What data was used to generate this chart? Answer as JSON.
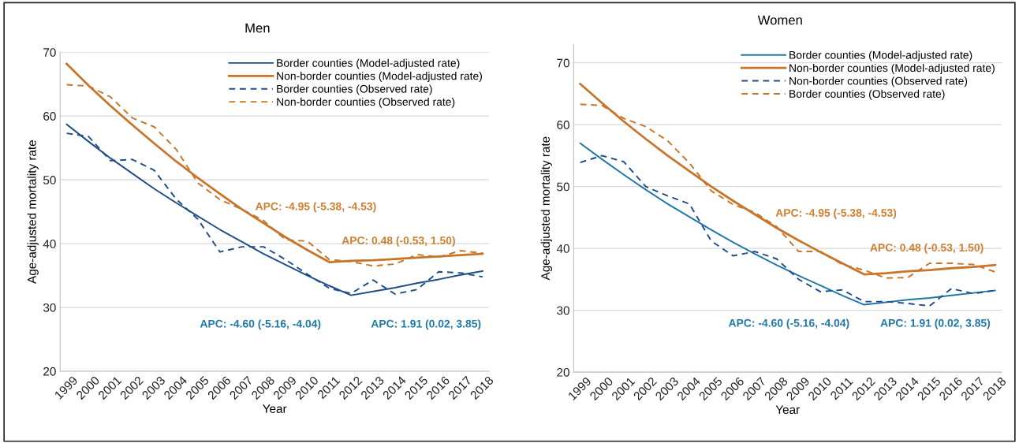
{
  "chart_data": [
    {
      "type": "line",
      "title": "Men",
      "xlabel": "Year",
      "ylabel": "Age-adjusted mortality rate",
      "categories": [
        "1999",
        "2000",
        "2001",
        "2002",
        "2003",
        "2004",
        "2005",
        "2006",
        "2007",
        "2008",
        "2009",
        "2010",
        "2011",
        "2012",
        "2013",
        "2014",
        "2015",
        "2016",
        "2017",
        "2018"
      ],
      "series": [
        {
          "name": "Border counties (Model-adjusted rate)",
          "color": "#1f4e89",
          "line_style": "solid",
          "values": [
            58.7,
            56.0,
            53.4,
            51.0,
            48.6,
            46.4,
            44.3,
            42.2,
            40.3,
            38.4,
            36.7,
            35.0,
            33.4,
            31.9,
            32.5,
            33.1,
            33.8,
            34.4,
            35.1,
            35.7
          ]
        },
        {
          "name": "Non-border counties (Model-adjusted rate)",
          "color": "#c8752a",
          "line_style": "solid",
          "values": [
            68.2,
            64.8,
            61.6,
            58.6,
            55.7,
            52.9,
            50.3,
            47.8,
            45.4,
            43.2,
            41.0,
            39.0,
            37.1,
            37.3,
            37.4,
            37.6,
            37.8,
            38.0,
            38.2,
            38.4
          ]
        },
        {
          "name": "Border counties (Observed rate)",
          "color": "#1f4e89",
          "line_style": "dashed",
          "values": [
            57.3,
            56.8,
            53.0,
            53.2,
            51.5,
            47.0,
            43.8,
            38.7,
            39.5,
            39.5,
            37.5,
            35.2,
            33.0,
            32.2,
            34.3,
            32.1,
            32.8,
            35.6,
            35.4,
            34.8
          ]
        },
        {
          "name": "Non-border counties (Observed rate)",
          "color": "#c8752a",
          "line_style": "dashed",
          "values": [
            64.9,
            64.7,
            63.0,
            59.7,
            58.3,
            54.8,
            49.5,
            46.9,
            45.4,
            43.6,
            40.6,
            40.4,
            37.5,
            37.2,
            36.5,
            36.8,
            38.3,
            37.9,
            38.9,
            38.5
          ]
        }
      ],
      "ylim": [
        20,
        70
      ],
      "yticks": [
        20,
        30,
        40,
        50,
        60,
        70
      ],
      "grid": "y",
      "legend": "top right",
      "marker": "none",
      "annotations": [
        "APC: -4.95 (-5.38, -4.53)",
        "APC: 0.48 (-0.53, 1.50)",
        "APC: -4.60 (-5.16, -4.04)",
        "APC: 1.91 (0.02, 3.85)"
      ]
    },
    {
      "type": "line",
      "title": "Women",
      "xlabel": "Year",
      "ylabel": "Age-adjusted mortality rate",
      "categories": [
        "1999",
        "2000",
        "2001",
        "2002",
        "2003",
        "2004",
        "2005",
        "2006",
        "2007",
        "2008",
        "2009",
        "2010",
        "2011",
        "2012",
        "2013",
        "2014",
        "2015",
        "2016",
        "2017",
        "2018"
      ],
      "series": [
        {
          "name": "Border counties (Model-adjusted rate)",
          "color": "#1f78a8",
          "line_style": "solid",
          "values": [
            57.0,
            54.4,
            51.9,
            49.5,
            47.2,
            45.1,
            43.0,
            41.0,
            39.1,
            37.3,
            35.6,
            34.0,
            32.4,
            30.9,
            31.3,
            31.7,
            32.0,
            32.4,
            32.8,
            33.2
          ]
        },
        {
          "name": "Non-border counties (Model-adjusted rate)",
          "color": "#c8752a",
          "line_style": "solid",
          "values": [
            66.6,
            63.5,
            60.5,
            57.7,
            55.0,
            52.5,
            50.0,
            47.7,
            45.5,
            43.3,
            41.3,
            39.4,
            37.6,
            35.8,
            36.0,
            36.3,
            36.5,
            36.8,
            37.0,
            37.3
          ]
        },
        {
          "name": "Non-border counties (Observed rate)",
          "color": "#1f4e89",
          "line_style": "dashed",
          "values": [
            53.9,
            55.0,
            54.0,
            50.0,
            48.5,
            47.2,
            41.2,
            38.8,
            39.5,
            38.3,
            35.0,
            33.0,
            33.3,
            31.4,
            31.4,
            31.1,
            30.7,
            33.5,
            32.7,
            33.2
          ]
        },
        {
          "name": "Border counties (Observed rate)",
          "color": "#c8752a",
          "line_style": "dashed",
          "values": [
            63.3,
            63.1,
            61.0,
            59.7,
            57.4,
            53.8,
            49.3,
            47.1,
            45.8,
            43.5,
            39.5,
            39.5,
            37.4,
            36.5,
            35.2,
            35.3,
            37.6,
            37.6,
            37.4,
            36.2
          ]
        }
      ],
      "ylim": [
        20,
        73
      ],
      "yticks": [
        20,
        30,
        40,
        50,
        60,
        70
      ],
      "grid": "y",
      "legend": "top right",
      "marker": "none",
      "annotations": [
        "APC: -4.95 (-5.38, -4.53)",
        "APC: 0.48 (-0.53, 1.50)",
        "APC: -4.60 (-5.16, -4.04)",
        "APC: 1.91 (0.02, 3.85)"
      ]
    }
  ]
}
